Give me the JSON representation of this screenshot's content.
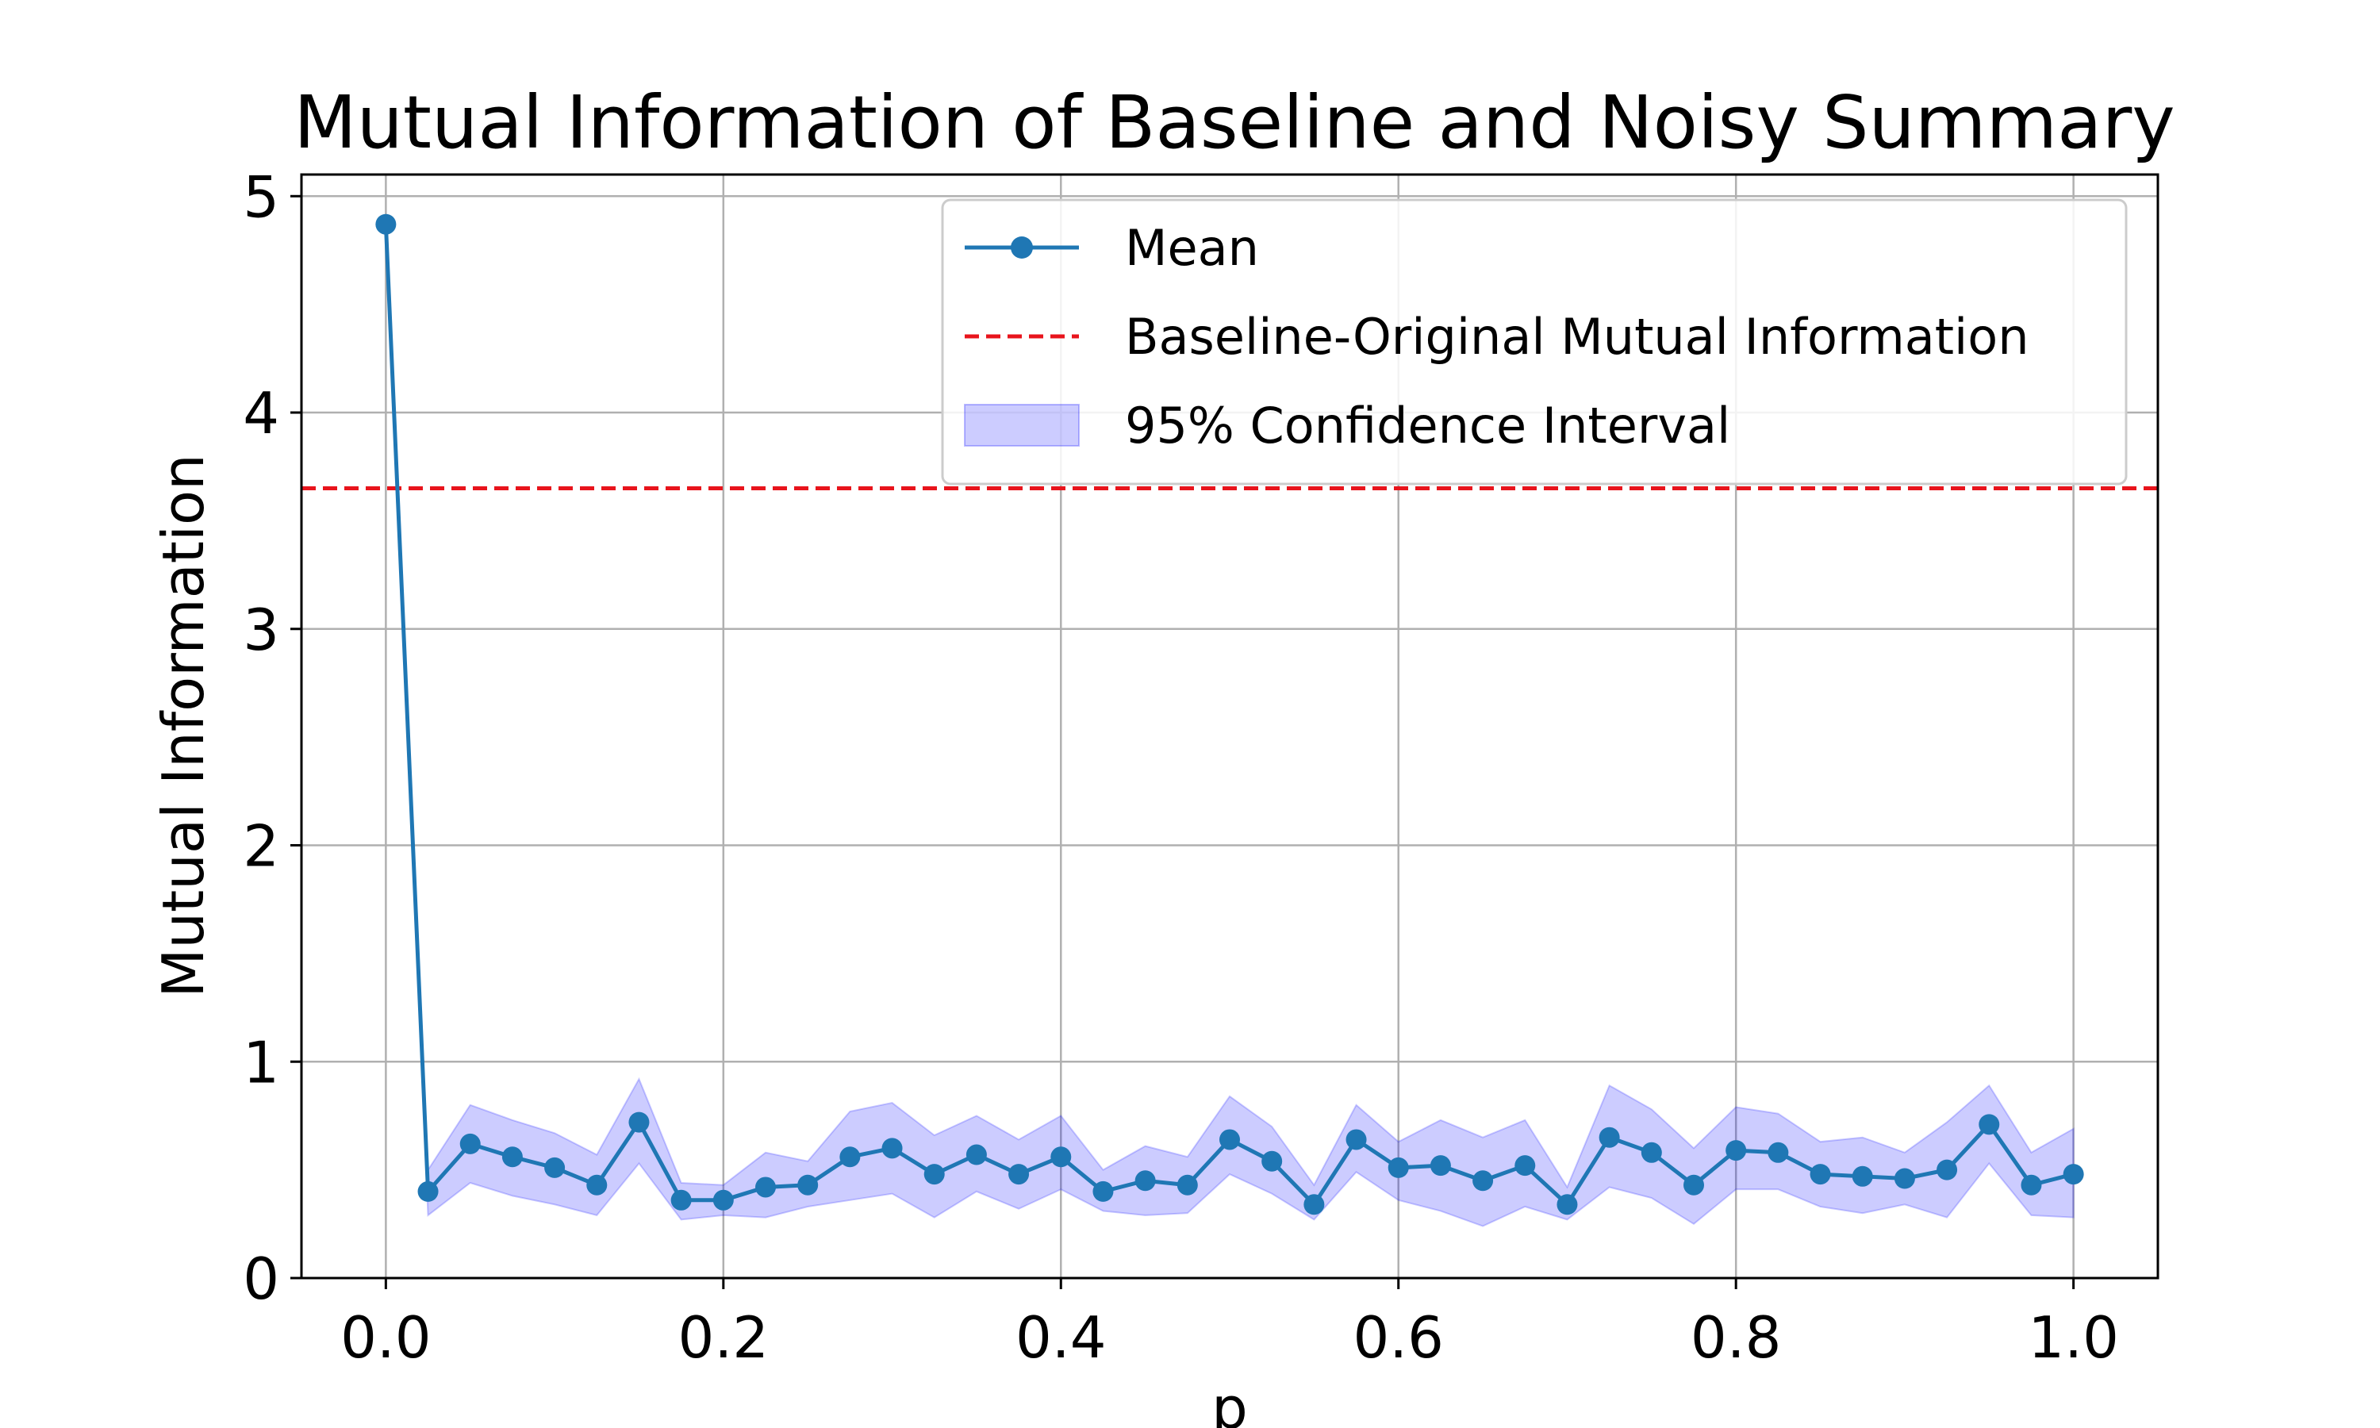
{
  "chart_data": {
    "type": "line",
    "title": "Mutual Information of Baseline and Noisy Summary",
    "xlabel": "p",
    "ylabel": "Mutual Information",
    "xlim": [
      -0.05,
      1.05
    ],
    "ylim": [
      0,
      5.1
    ],
    "xticks": [
      "0.0",
      "0.2",
      "0.4",
      "0.6",
      "0.8",
      "1.0"
    ],
    "yticks": [
      "0",
      "1",
      "2",
      "3",
      "4",
      "5"
    ],
    "grid": true,
    "legend_position": "upper-right",
    "x": [
      0.0,
      0.025,
      0.05,
      0.075,
      0.1,
      0.125,
      0.15,
      0.175,
      0.2,
      0.225,
      0.25,
      0.275,
      0.3,
      0.325,
      0.35,
      0.375,
      0.4,
      0.425,
      0.45,
      0.475,
      0.5,
      0.525,
      0.55,
      0.575,
      0.6,
      0.625,
      0.65,
      0.675,
      0.7,
      0.725,
      0.75,
      0.775,
      0.8,
      0.825,
      0.85,
      0.875,
      0.9,
      0.925,
      0.95,
      0.975,
      1.0
    ],
    "series": [
      {
        "name": "Mean",
        "style": "line-marker",
        "color": "#1f77b4",
        "values": [
          4.87,
          0.4,
          0.62,
          0.56,
          0.51,
          0.43,
          0.72,
          0.36,
          0.36,
          0.42,
          0.43,
          0.56,
          0.6,
          0.48,
          0.57,
          0.48,
          0.56,
          0.4,
          0.45,
          0.43,
          0.64,
          0.54,
          0.34,
          0.64,
          0.51,
          0.52,
          0.45,
          0.52,
          0.34,
          0.65,
          0.58,
          0.43,
          0.59,
          0.58,
          0.48,
          0.47,
          0.46,
          0.5,
          0.71,
          0.43,
          0.48
        ]
      },
      {
        "name": "Baseline-Original Mutual Information",
        "style": "dashed-hline",
        "color": "#e8141c",
        "value": 3.65
      },
      {
        "name": "95% Confidence Interval",
        "style": "band",
        "color": "#0000ff",
        "lower": [
          4.87,
          0.29,
          0.44,
          0.38,
          0.34,
          0.29,
          0.53,
          0.27,
          0.29,
          0.28,
          0.33,
          0.36,
          0.39,
          0.28,
          0.4,
          0.32,
          0.41,
          0.31,
          0.29,
          0.3,
          0.48,
          0.39,
          0.27,
          0.49,
          0.36,
          0.31,
          0.24,
          0.33,
          0.27,
          0.42,
          0.37,
          0.25,
          0.41,
          0.41,
          0.33,
          0.3,
          0.34,
          0.28,
          0.53,
          0.29,
          0.28
        ],
        "upper": [
          4.87,
          0.5,
          0.8,
          0.73,
          0.67,
          0.57,
          0.92,
          0.44,
          0.43,
          0.58,
          0.54,
          0.77,
          0.81,
          0.66,
          0.75,
          0.64,
          0.75,
          0.5,
          0.61,
          0.56,
          0.84,
          0.7,
          0.43,
          0.8,
          0.63,
          0.73,
          0.65,
          0.73,
          0.42,
          0.89,
          0.78,
          0.6,
          0.79,
          0.76,
          0.63,
          0.65,
          0.58,
          0.72,
          0.89,
          0.58,
          0.69
        ]
      }
    ]
  }
}
